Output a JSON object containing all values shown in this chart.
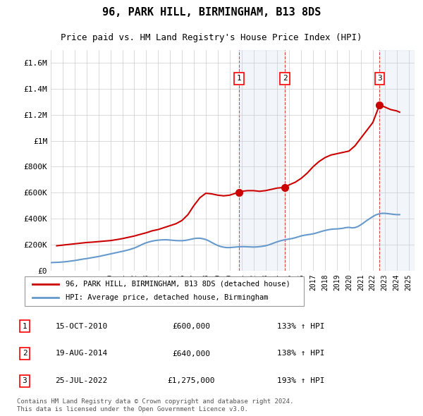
{
  "title": "96, PARK HILL, BIRMINGHAM, B13 8DS",
  "subtitle": "Price paid vs. HM Land Registry's House Price Index (HPI)",
  "ylim": [
    0,
    1700000
  ],
  "yticks": [
    0,
    200000,
    400000,
    600000,
    800000,
    1000000,
    1200000,
    1400000,
    1600000
  ],
  "ytick_labels": [
    "£0",
    "£200K",
    "£400K",
    "£600K",
    "£800K",
    "£1M",
    "£1.2M",
    "£1.4M",
    "£1.6M"
  ],
  "xlim_start": 1995.0,
  "xlim_end": 2025.5,
  "hpi_color": "#6699cc",
  "price_color": "#cc0000",
  "transactions": [
    {
      "year": 2010.79,
      "price": 600000,
      "label": "1"
    },
    {
      "year": 2014.63,
      "price": 640000,
      "label": "2"
    },
    {
      "year": 2022.56,
      "price": 1275000,
      "label": "3"
    }
  ],
  "transaction_table": [
    {
      "num": "1",
      "date": "15-OCT-2010",
      "price": "£600,000",
      "hpi": "133% ↑ HPI"
    },
    {
      "num": "2",
      "date": "19-AUG-2014",
      "price": "£640,000",
      "hpi": "138% ↑ HPI"
    },
    {
      "num": "3",
      "date": "25-JUL-2022",
      "price": "£1,275,000",
      "hpi": "193% ↑ HPI"
    }
  ],
  "legend_line1": "96, PARK HILL, BIRMINGHAM, B13 8DS (detached house)",
  "legend_line2": "HPI: Average price, detached house, Birmingham",
  "footer": "Contains HM Land Registry data © Crown copyright and database right 2024.\nThis data is licensed under the Open Government Licence v3.0.",
  "hpi_data_x": [
    1995.0,
    1995.25,
    1995.5,
    1995.75,
    1996.0,
    1996.25,
    1996.5,
    1996.75,
    1997.0,
    1997.25,
    1997.5,
    1997.75,
    1998.0,
    1998.25,
    1998.5,
    1998.75,
    1999.0,
    1999.25,
    1999.5,
    1999.75,
    2000.0,
    2000.25,
    2000.5,
    2000.75,
    2001.0,
    2001.25,
    2001.5,
    2001.75,
    2002.0,
    2002.25,
    2002.5,
    2002.75,
    2003.0,
    2003.25,
    2003.5,
    2003.75,
    2004.0,
    2004.25,
    2004.5,
    2004.75,
    2005.0,
    2005.25,
    2005.5,
    2005.75,
    2006.0,
    2006.25,
    2006.5,
    2006.75,
    2007.0,
    2007.25,
    2007.5,
    2007.75,
    2008.0,
    2008.25,
    2008.5,
    2008.75,
    2009.0,
    2009.25,
    2009.5,
    2009.75,
    2010.0,
    2010.25,
    2010.5,
    2010.75,
    2011.0,
    2011.25,
    2011.5,
    2011.75,
    2012.0,
    2012.25,
    2012.5,
    2012.75,
    2013.0,
    2013.25,
    2013.5,
    2013.75,
    2014.0,
    2014.25,
    2014.5,
    2014.75,
    2015.0,
    2015.25,
    2015.5,
    2015.75,
    2016.0,
    2016.25,
    2016.5,
    2016.75,
    2017.0,
    2017.25,
    2017.5,
    2017.75,
    2018.0,
    2018.25,
    2018.5,
    2018.75,
    2019.0,
    2019.25,
    2019.5,
    2019.75,
    2020.0,
    2020.25,
    2020.5,
    2020.75,
    2021.0,
    2021.25,
    2021.5,
    2021.75,
    2022.0,
    2022.25,
    2022.5,
    2022.75,
    2023.0,
    2023.25,
    2023.5,
    2023.75,
    2024.0,
    2024.25
  ],
  "hpi_data_y": [
    60000,
    61000,
    62000,
    63000,
    65000,
    67000,
    70000,
    73000,
    76000,
    80000,
    84000,
    88000,
    91000,
    95000,
    99000,
    103000,
    107000,
    112000,
    117000,
    122000,
    127000,
    132000,
    137000,
    142000,
    147000,
    152000,
    158000,
    165000,
    172000,
    182000,
    193000,
    204000,
    213000,
    220000,
    226000,
    230000,
    233000,
    235000,
    236000,
    236000,
    234000,
    232000,
    230000,
    229000,
    229000,
    231000,
    235000,
    240000,
    245000,
    248000,
    248000,
    244000,
    238000,
    228000,
    215000,
    203000,
    192000,
    184000,
    179000,
    176000,
    176000,
    178000,
    180000,
    182000,
    183000,
    183000,
    182000,
    181000,
    180000,
    181000,
    183000,
    186000,
    190000,
    196000,
    204000,
    213000,
    221000,
    228000,
    234000,
    238000,
    242000,
    246000,
    252000,
    259000,
    266000,
    271000,
    275000,
    278000,
    282000,
    288000,
    295000,
    302000,
    308000,
    313000,
    317000,
    319000,
    320000,
    322000,
    325000,
    330000,
    332000,
    328000,
    330000,
    338000,
    352000,
    368000,
    385000,
    400000,
    415000,
    428000,
    435000,
    440000,
    440000,
    438000,
    435000,
    432000,
    430000,
    430000
  ],
  "price_data_x": [
    1995.5,
    1996.0,
    1996.5,
    1997.0,
    1997.5,
    1998.0,
    1998.5,
    1999.0,
    1999.5,
    2000.0,
    2000.5,
    2001.0,
    2001.5,
    2002.0,
    2002.5,
    2003.0,
    2003.5,
    2004.0,
    2004.5,
    2005.0,
    2005.5,
    2006.0,
    2006.5,
    2007.0,
    2007.5,
    2008.0,
    2008.5,
    2009.0,
    2009.5,
    2010.0,
    2010.5,
    2010.79,
    2011.0,
    2011.5,
    2012.0,
    2012.5,
    2013.0,
    2013.5,
    2014.0,
    2014.63,
    2015.0,
    2015.5,
    2016.0,
    2016.5,
    2017.0,
    2017.5,
    2018.0,
    2018.5,
    2019.0,
    2019.5,
    2020.0,
    2020.5,
    2021.0,
    2021.5,
    2022.0,
    2022.56,
    2022.75,
    2023.0,
    2023.5,
    2024.0,
    2024.25
  ],
  "price_data_y": [
    190000,
    195000,
    200000,
    205000,
    210000,
    215000,
    218000,
    222000,
    226000,
    230000,
    237000,
    245000,
    255000,
    265000,
    278000,
    290000,
    305000,
    315000,
    330000,
    345000,
    360000,
    385000,
    430000,
    500000,
    560000,
    595000,
    590000,
    580000,
    575000,
    580000,
    595000,
    600000,
    610000,
    615000,
    615000,
    610000,
    615000,
    625000,
    635000,
    640000,
    660000,
    680000,
    710000,
    750000,
    800000,
    840000,
    870000,
    890000,
    900000,
    910000,
    920000,
    960000,
    1020000,
    1080000,
    1140000,
    1275000,
    1270000,
    1260000,
    1240000,
    1230000,
    1220000
  ]
}
